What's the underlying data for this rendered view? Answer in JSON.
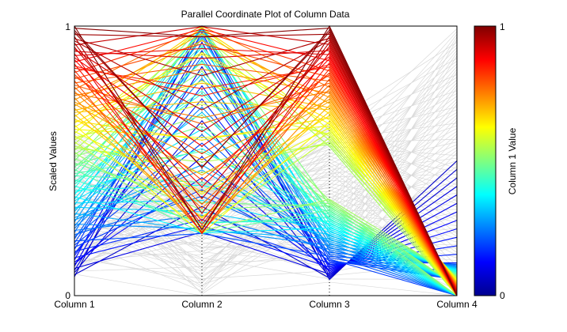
{
  "chart_data": {
    "type": "parallel-coordinates",
    "title": "Parallel Coordinate Plot of Column Data",
    "ylabel": "Scaled Values",
    "axes": [
      "Column 1",
      "Column 2",
      "Column 3",
      "Column 4"
    ],
    "ylim": [
      0,
      1
    ],
    "y_ticks": [
      "0",
      "1"
    ],
    "grid": false,
    "highlight_line_count": 120,
    "background_line_count": 100,
    "highlight_traits": {
      "column_1_range": [
        0.07,
        1.0
      ],
      "column_2_range": [
        0.23,
        1.0
      ],
      "column_3_range": [
        0.06,
        1.0
      ],
      "column_4_range": [
        0.0,
        0.5
      ]
    },
    "background_line_color": "#d9d9d9",
    "colorbar": {
      "label": "Column 1 Value",
      "min_label": "0",
      "max_label": "1",
      "colormap": "jet"
    }
  }
}
